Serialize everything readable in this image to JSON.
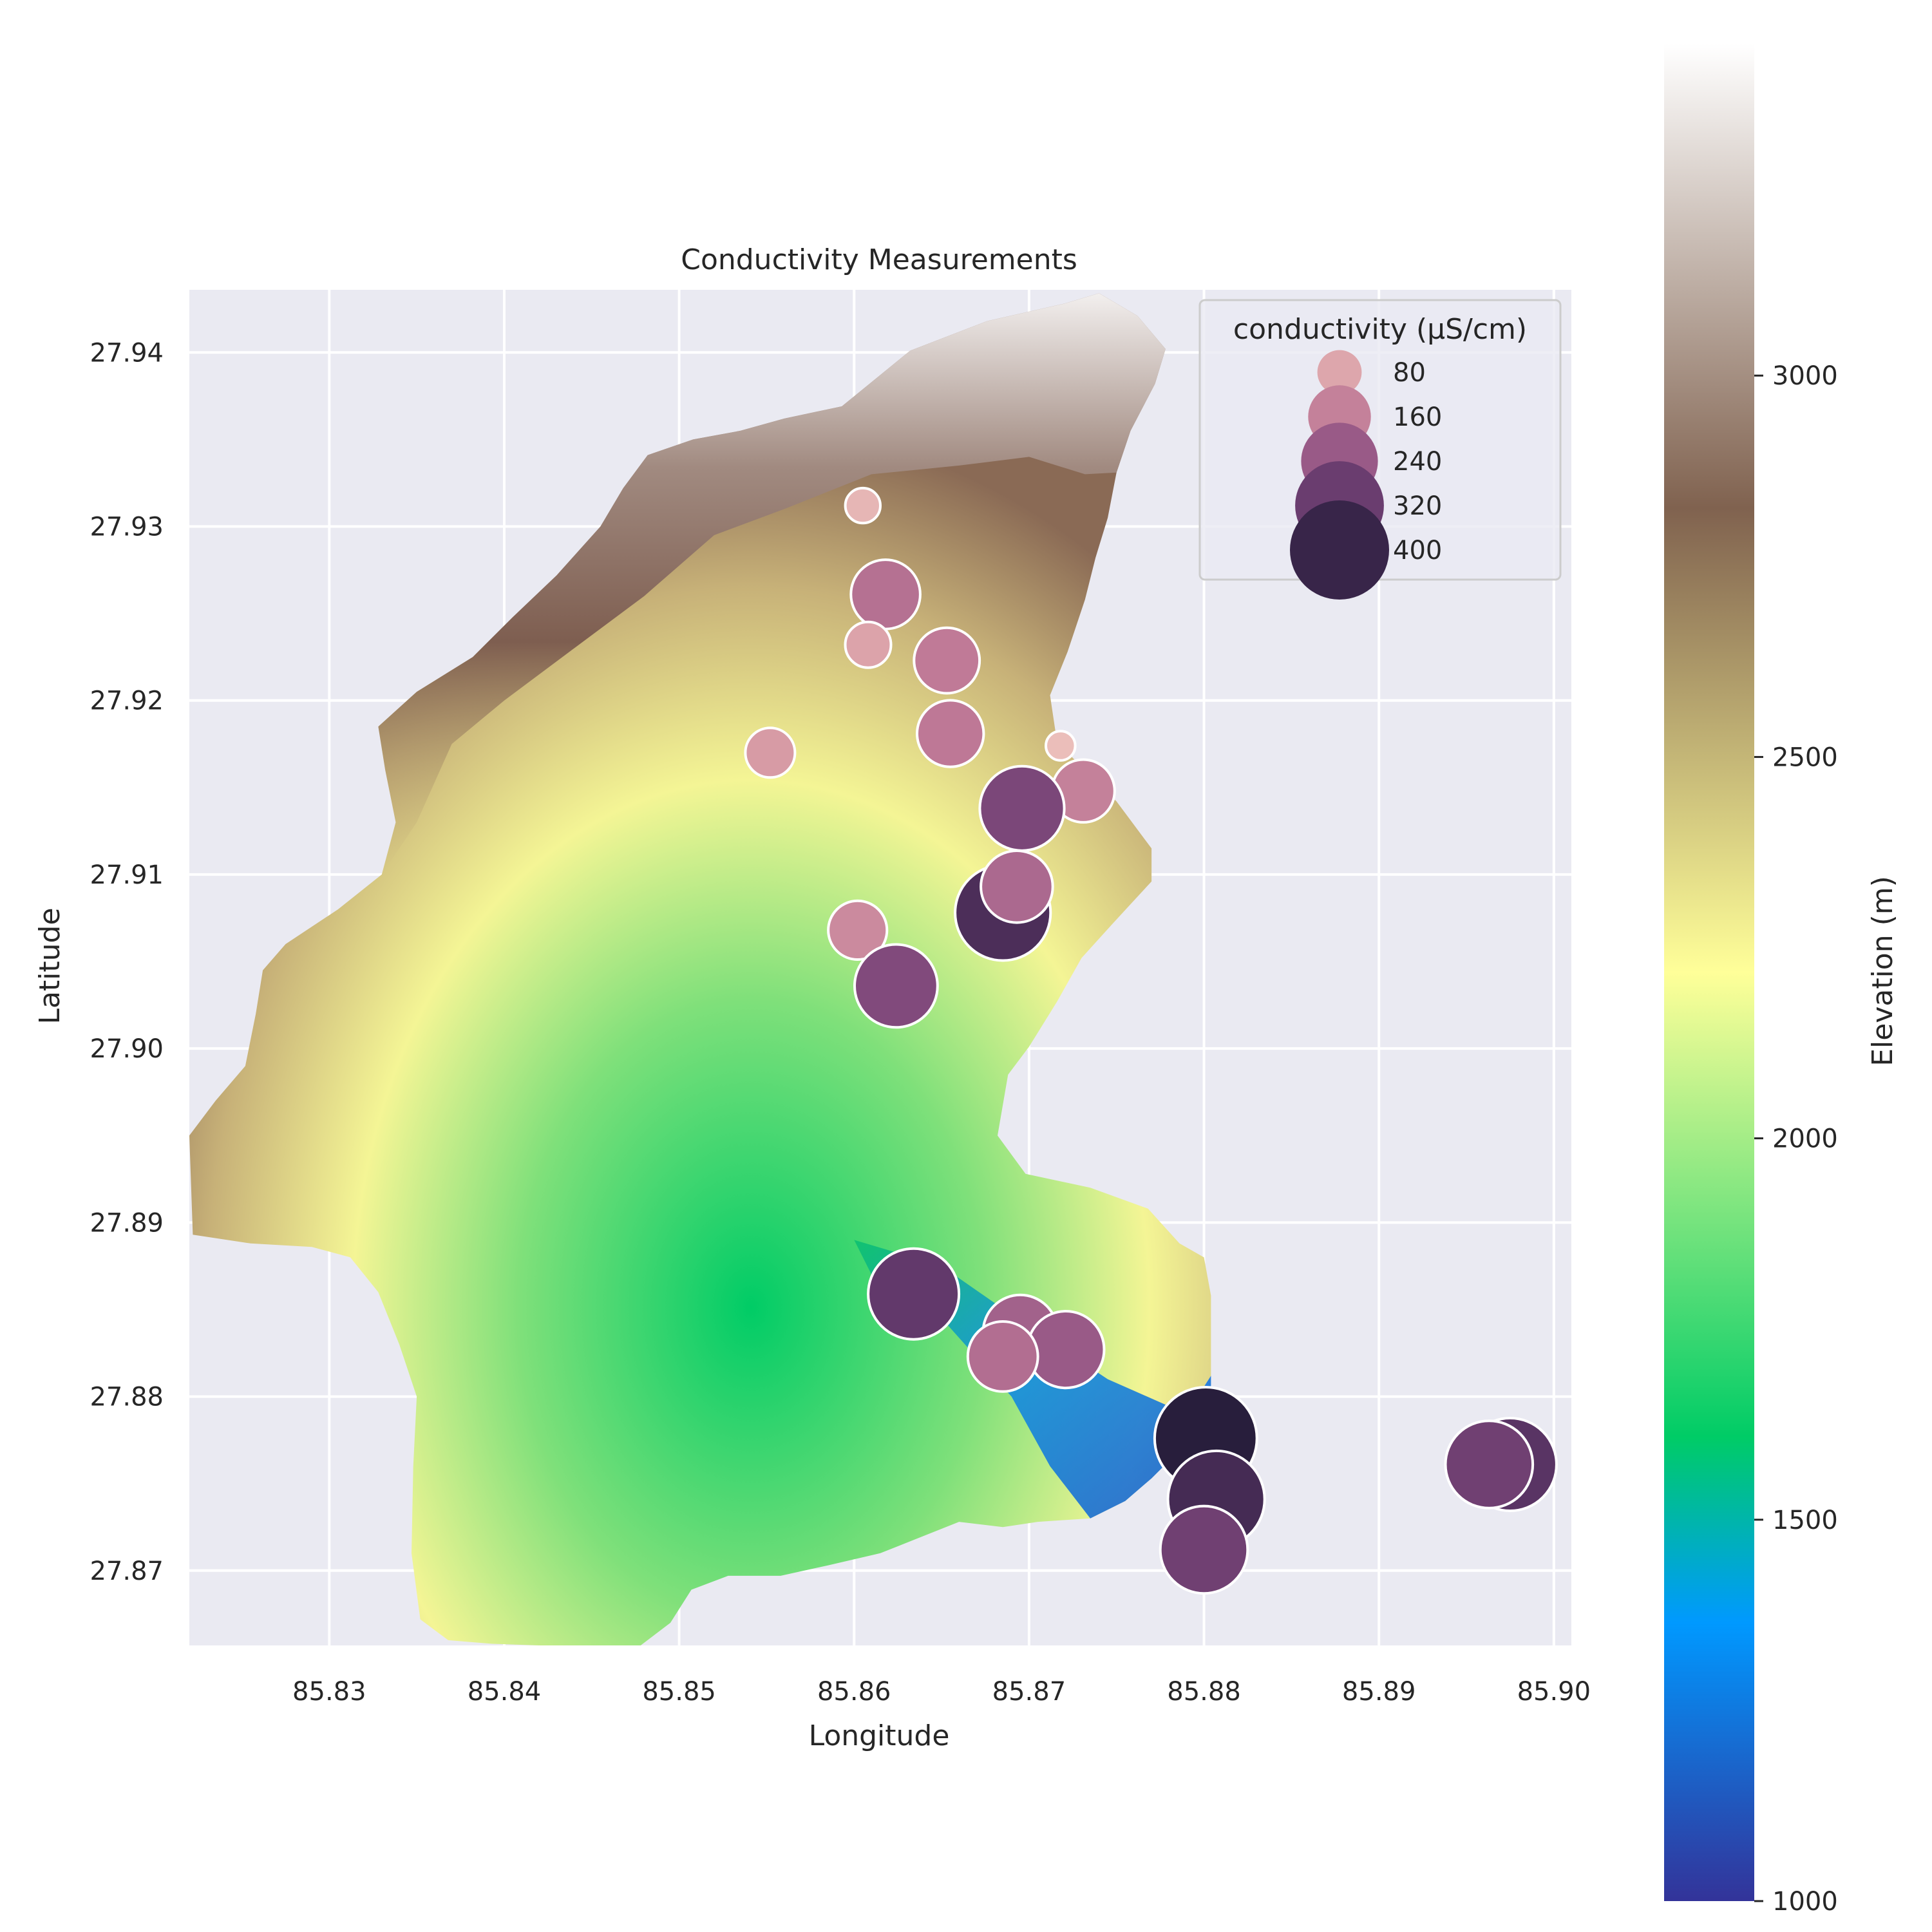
{
  "chart_data": {
    "type": "scatter",
    "title": "Conductivity Measurements",
    "xlabel": "Longitude",
    "ylabel": "Latitude",
    "xlim": [
      85.822,
      85.901
    ],
    "ylim": [
      27.8657,
      27.9436
    ],
    "xticks": [
      85.83,
      85.84,
      85.85,
      85.86,
      85.87,
      85.88,
      85.89,
      85.9
    ],
    "xtick_labels": [
      "85.83",
      "85.84",
      "85.85",
      "85.86",
      "85.87",
      "85.88",
      "85.89",
      "85.90"
    ],
    "yticks": [
      27.87,
      27.88,
      27.89,
      27.9,
      27.91,
      27.92,
      27.93,
      27.94
    ],
    "ytick_labels": [
      "27.87",
      "27.88",
      "27.89",
      "27.90",
      "27.91",
      "27.92",
      "27.93",
      "27.94"
    ],
    "grid": true,
    "background": "#eaeaf2",
    "size_variable": "conductivity (µS/cm)",
    "legend": {
      "title": "conductivity (µS/cm)",
      "placement": "top-right",
      "entries": [
        {
          "label": "80",
          "value": 80
        },
        {
          "label": "160",
          "value": 160
        },
        {
          "label": "240",
          "value": 240
        },
        {
          "label": "320",
          "value": 320
        },
        {
          "label": "400",
          "value": 400
        }
      ]
    },
    "points": [
      {
        "x": 85.8605,
        "y": 27.9312,
        "value": 50
      },
      {
        "x": 85.8618,
        "y": 27.9261,
        "value": 195
      },
      {
        "x": 85.8608,
        "y": 27.9232,
        "value": 85
      },
      {
        "x": 85.8653,
        "y": 27.9223,
        "value": 175
      },
      {
        "x": 85.8655,
        "y": 27.9181,
        "value": 180
      },
      {
        "x": 85.8552,
        "y": 27.917,
        "value": 100
      },
      {
        "x": 85.8718,
        "y": 27.9174,
        "value": 35
      },
      {
        "x": 85.8731,
        "y": 27.9148,
        "value": 160
      },
      {
        "x": 85.8696,
        "y": 27.9138,
        "value": 290
      },
      {
        "x": 85.8685,
        "y": 27.9078,
        "value": 370
      },
      {
        "x": 85.8693,
        "y": 27.9093,
        "value": 210
      },
      {
        "x": 85.8602,
        "y": 27.9068,
        "value": 140
      },
      {
        "x": 85.8624,
        "y": 27.9036,
        "value": 280
      },
      {
        "x": 85.8634,
        "y": 27.8859,
        "value": 335
      },
      {
        "x": 85.8695,
        "y": 27.8837,
        "value": 225
      },
      {
        "x": 85.8721,
        "y": 27.8827,
        "value": 240
      },
      {
        "x": 85.8685,
        "y": 27.8823,
        "value": 200
      },
      {
        "x": 85.8801,
        "y": 27.8776,
        "value": 425
      },
      {
        "x": 85.8807,
        "y": 27.8741,
        "value": 380
      },
      {
        "x": 85.88,
        "y": 27.8712,
        "value": 310
      },
      {
        "x": 85.8975,
        "y": 27.8761,
        "value": 350
      },
      {
        "x": 85.8963,
        "y": 27.8761,
        "value": 310
      }
    ],
    "colorbar": {
      "label": "Elevation (m)",
      "range": [
        1000,
        3435
      ],
      "ticks": [
        1000,
        1500,
        2000,
        2500,
        3000
      ],
      "tick_labels": [
        "1000",
        "1500",
        "2000",
        "2500",
        "3000"
      ],
      "colormap": "terrain"
    }
  }
}
